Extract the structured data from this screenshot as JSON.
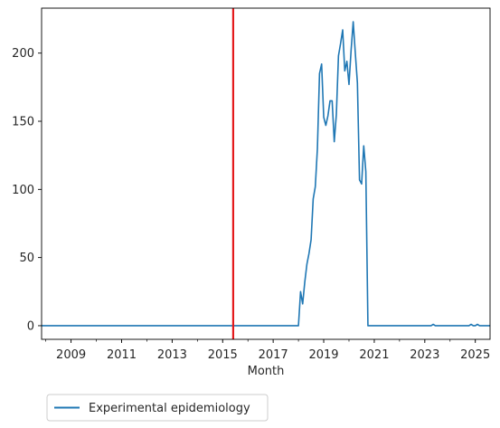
{
  "chart_data": {
    "type": "line",
    "title": "",
    "xlabel": "Month",
    "ylabel": "",
    "xlim": [
      "2007-11",
      "2025-08"
    ],
    "ylim": [
      -10,
      233
    ],
    "x_ticks": [
      "2009",
      "2011",
      "2013",
      "2015",
      "2017",
      "2019",
      "2021",
      "2023",
      "2025"
    ],
    "y_ticks": [
      0,
      50,
      100,
      150,
      200
    ],
    "grid": false,
    "legend": {
      "placement": "below-left"
    },
    "vertical_line": {
      "x": "2015-06",
      "color": "#e41a1c"
    },
    "series": [
      {
        "name": "Experimental epidemiology",
        "color": "#1f77b4",
        "points": [
          [
            "2007-11",
            0
          ],
          [
            "2018-01",
            0
          ],
          [
            "2018-02",
            25
          ],
          [
            "2018-03",
            16
          ],
          [
            "2018-04",
            32
          ],
          [
            "2018-05",
            45
          ],
          [
            "2018-06",
            53
          ],
          [
            "2018-07",
            63
          ],
          [
            "2018-08",
            93
          ],
          [
            "2018-09",
            102
          ],
          [
            "2018-10",
            130
          ],
          [
            "2018-11",
            185
          ],
          [
            "2018-12",
            192
          ],
          [
            "2019-01",
            153
          ],
          [
            "2019-02",
            147
          ],
          [
            "2019-03",
            154
          ],
          [
            "2019-04",
            165
          ],
          [
            "2019-05",
            165
          ],
          [
            "2019-06",
            135
          ],
          [
            "2019-07",
            155
          ],
          [
            "2019-08",
            198
          ],
          [
            "2019-09",
            207
          ],
          [
            "2019-10",
            217
          ],
          [
            "2019-11",
            187
          ],
          [
            "2019-12",
            194
          ],
          [
            "2020-01",
            177
          ],
          [
            "2020-02",
            202
          ],
          [
            "2020-03",
            223
          ],
          [
            "2020-04",
            200
          ],
          [
            "2020-05",
            178
          ],
          [
            "2020-06",
            107
          ],
          [
            "2020-07",
            104
          ],
          [
            "2020-08",
            132
          ],
          [
            "2020-09",
            113
          ],
          [
            "2020-10",
            0
          ],
          [
            "2023-04",
            0
          ],
          [
            "2023-05",
            1
          ],
          [
            "2023-06",
            0
          ],
          [
            "2024-10",
            0
          ],
          [
            "2024-11",
            1
          ],
          [
            "2024-12",
            0
          ],
          [
            "2025-01",
            0
          ],
          [
            "2025-02",
            1
          ],
          [
            "2025-03",
            0
          ],
          [
            "2025-08",
            0
          ]
        ]
      }
    ]
  }
}
